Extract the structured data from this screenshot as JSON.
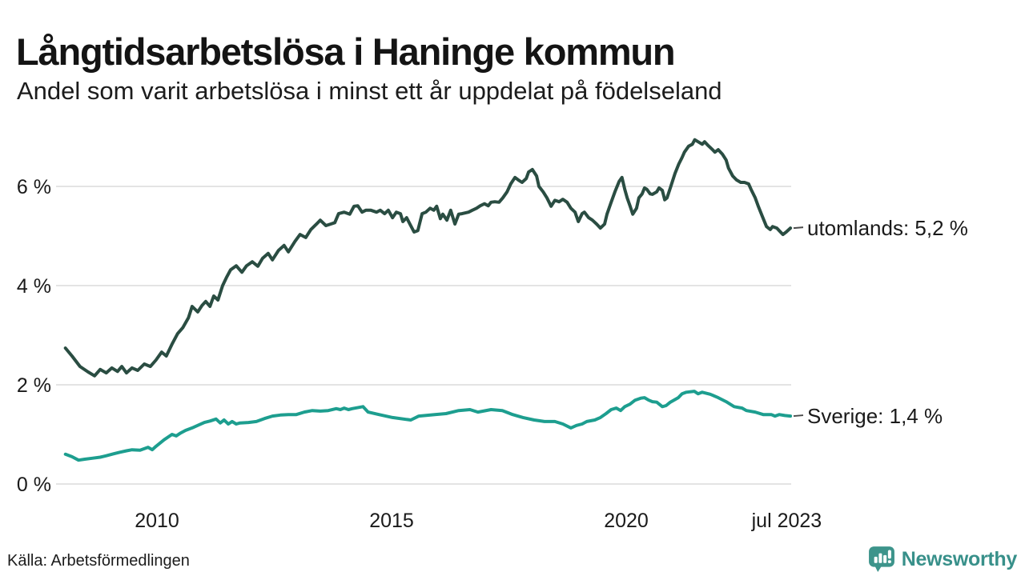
{
  "header": {
    "title": "Långtidsarbetslösa i Haninge kommun",
    "subtitle": "Andel som varit arbetslösa i minst ett år uppdelat på födelseland"
  },
  "footer": {
    "source": "Källa: Arbetsförmedlingen",
    "brand": "Newsworthy"
  },
  "colors": {
    "utomlands_line": "#2a4d42",
    "sverige_line": "#1d9e8f",
    "gridline": "#e4e4e4",
    "axis_text": "#1a1a1a",
    "label_text": "#1a1a1a",
    "leader_dash": "#4a4a4a",
    "brand_teal": "#38908a"
  },
  "chart_data": {
    "type": "line",
    "title": "Långtidsarbetslösa i Haninge kommun",
    "subtitle": "Andel som varit arbetslösa i minst ett år uppdelat på födelseland",
    "xlabel": "",
    "ylabel": "",
    "grid": true,
    "legend_position": "end-of-line-labels",
    "x_axis": {
      "range": [
        2007.9,
        2023.55
      ],
      "ticks": [
        {
          "t": 2010,
          "label": "2010"
        },
        {
          "t": 2015,
          "label": "2015"
        },
        {
          "t": 2020,
          "label": "2020"
        },
        {
          "t": 2023.42,
          "label": "jul 2023"
        }
      ]
    },
    "y_axis": {
      "range": [
        0,
        7.3
      ],
      "unit": "%",
      "ticks": [
        {
          "v": 0,
          "label": "0 %"
        },
        {
          "v": 2,
          "label": "2 %"
        },
        {
          "v": 4,
          "label": "4 %"
        },
        {
          "v": 6,
          "label": "6 %"
        }
      ]
    },
    "series": [
      {
        "name": "utomlands",
        "end_label": "utomlands: 5,2 %",
        "last_value": "5,2 %",
        "color": "#2a4d42",
        "points": [
          [
            2008.05,
            2.74
          ],
          [
            2008.19,
            2.58
          ],
          [
            2008.36,
            2.37
          ],
          [
            2008.53,
            2.26
          ],
          [
            2008.67,
            2.18
          ],
          [
            2008.79,
            2.31
          ],
          [
            2008.92,
            2.24
          ],
          [
            2009.04,
            2.34
          ],
          [
            2009.16,
            2.27
          ],
          [
            2009.25,
            2.37
          ],
          [
            2009.35,
            2.24
          ],
          [
            2009.47,
            2.34
          ],
          [
            2009.59,
            2.29
          ],
          [
            2009.73,
            2.42
          ],
          [
            2009.86,
            2.37
          ],
          [
            2009.98,
            2.5
          ],
          [
            2010.1,
            2.66
          ],
          [
            2010.2,
            2.58
          ],
          [
            2010.32,
            2.82
          ],
          [
            2010.44,
            3.03
          ],
          [
            2010.55,
            3.15
          ],
          [
            2010.67,
            3.35
          ],
          [
            2010.75,
            3.58
          ],
          [
            2010.87,
            3.47
          ],
          [
            2010.96,
            3.6
          ],
          [
            2011.04,
            3.68
          ],
          [
            2011.13,
            3.58
          ],
          [
            2011.21,
            3.79
          ],
          [
            2011.3,
            3.71
          ],
          [
            2011.4,
            4.0
          ],
          [
            2011.48,
            4.16
          ],
          [
            2011.57,
            4.32
          ],
          [
            2011.69,
            4.4
          ],
          [
            2011.81,
            4.27
          ],
          [
            2011.91,
            4.4
          ],
          [
            2012.03,
            4.48
          ],
          [
            2012.15,
            4.39
          ],
          [
            2012.25,
            4.55
          ],
          [
            2012.37,
            4.65
          ],
          [
            2012.46,
            4.52
          ],
          [
            2012.59,
            4.71
          ],
          [
            2012.71,
            4.81
          ],
          [
            2012.8,
            4.68
          ],
          [
            2012.94,
            4.89
          ],
          [
            2013.05,
            5.03
          ],
          [
            2013.17,
            4.97
          ],
          [
            2013.28,
            5.13
          ],
          [
            2013.4,
            5.24
          ],
          [
            2013.48,
            5.32
          ],
          [
            2013.6,
            5.21
          ],
          [
            2013.7,
            5.24
          ],
          [
            2013.79,
            5.27
          ],
          [
            2013.87,
            5.45
          ],
          [
            2013.99,
            5.48
          ],
          [
            2014.11,
            5.44
          ],
          [
            2014.2,
            5.6
          ],
          [
            2014.28,
            5.61
          ],
          [
            2014.37,
            5.48
          ],
          [
            2014.45,
            5.52
          ],
          [
            2014.56,
            5.52
          ],
          [
            2014.68,
            5.48
          ],
          [
            2014.76,
            5.52
          ],
          [
            2014.85,
            5.45
          ],
          [
            2014.93,
            5.52
          ],
          [
            2015.02,
            5.37
          ],
          [
            2015.1,
            5.48
          ],
          [
            2015.19,
            5.45
          ],
          [
            2015.24,
            5.29
          ],
          [
            2015.32,
            5.37
          ],
          [
            2015.39,
            5.24
          ],
          [
            2015.48,
            5.08
          ],
          [
            2015.56,
            5.11
          ],
          [
            2015.65,
            5.45
          ],
          [
            2015.73,
            5.48
          ],
          [
            2015.82,
            5.56
          ],
          [
            2015.9,
            5.52
          ],
          [
            2015.96,
            5.6
          ],
          [
            2016.04,
            5.35
          ],
          [
            2016.09,
            5.44
          ],
          [
            2016.18,
            5.32
          ],
          [
            2016.26,
            5.52
          ],
          [
            2016.35,
            5.24
          ],
          [
            2016.43,
            5.44
          ],
          [
            2016.5,
            5.45
          ],
          [
            2016.64,
            5.48
          ],
          [
            2016.72,
            5.52
          ],
          [
            2016.81,
            5.56
          ],
          [
            2016.89,
            5.61
          ],
          [
            2016.98,
            5.65
          ],
          [
            2017.06,
            5.61
          ],
          [
            2017.12,
            5.68
          ],
          [
            2017.2,
            5.69
          ],
          [
            2017.29,
            5.68
          ],
          [
            2017.37,
            5.77
          ],
          [
            2017.46,
            5.89
          ],
          [
            2017.54,
            6.05
          ],
          [
            2017.63,
            6.18
          ],
          [
            2017.7,
            6.13
          ],
          [
            2017.78,
            6.08
          ],
          [
            2017.87,
            6.16
          ],
          [
            2017.92,
            6.29
          ],
          [
            2018.0,
            6.34
          ],
          [
            2018.09,
            6.21
          ],
          [
            2018.14,
            6.0
          ],
          [
            2018.23,
            5.89
          ],
          [
            2018.31,
            5.77
          ],
          [
            2018.4,
            5.6
          ],
          [
            2018.48,
            5.72
          ],
          [
            2018.57,
            5.69
          ],
          [
            2018.65,
            5.74
          ],
          [
            2018.74,
            5.68
          ],
          [
            2018.82,
            5.56
          ],
          [
            2018.91,
            5.48
          ],
          [
            2018.98,
            5.29
          ],
          [
            2019.06,
            5.45
          ],
          [
            2019.11,
            5.48
          ],
          [
            2019.2,
            5.37
          ],
          [
            2019.28,
            5.32
          ],
          [
            2019.37,
            5.24
          ],
          [
            2019.45,
            5.16
          ],
          [
            2019.54,
            5.24
          ],
          [
            2019.59,
            5.44
          ],
          [
            2019.68,
            5.68
          ],
          [
            2019.76,
            5.89
          ],
          [
            2019.85,
            6.1
          ],
          [
            2019.91,
            6.18
          ],
          [
            2019.97,
            5.94
          ],
          [
            2020.02,
            5.77
          ],
          [
            2020.08,
            5.61
          ],
          [
            2020.14,
            5.44
          ],
          [
            2020.22,
            5.56
          ],
          [
            2020.27,
            5.77
          ],
          [
            2020.34,
            5.85
          ],
          [
            2020.39,
            5.97
          ],
          [
            2020.44,
            5.94
          ],
          [
            2020.51,
            5.85
          ],
          [
            2020.56,
            5.84
          ],
          [
            2020.65,
            5.89
          ],
          [
            2020.7,
            5.97
          ],
          [
            2020.77,
            5.92
          ],
          [
            2020.82,
            5.73
          ],
          [
            2020.87,
            5.77
          ],
          [
            2020.95,
            6.0
          ],
          [
            2021.04,
            6.26
          ],
          [
            2021.12,
            6.45
          ],
          [
            2021.19,
            6.58
          ],
          [
            2021.24,
            6.69
          ],
          [
            2021.33,
            6.81
          ],
          [
            2021.41,
            6.85
          ],
          [
            2021.46,
            6.94
          ],
          [
            2021.55,
            6.89
          ],
          [
            2021.62,
            6.85
          ],
          [
            2021.67,
            6.9
          ],
          [
            2021.75,
            6.82
          ],
          [
            2021.84,
            6.74
          ],
          [
            2021.89,
            6.69
          ],
          [
            2021.96,
            6.74
          ],
          [
            2022.05,
            6.65
          ],
          [
            2022.13,
            6.53
          ],
          [
            2022.18,
            6.37
          ],
          [
            2022.27,
            6.21
          ],
          [
            2022.35,
            6.13
          ],
          [
            2022.44,
            6.08
          ],
          [
            2022.52,
            6.08
          ],
          [
            2022.61,
            6.05
          ],
          [
            2022.66,
            5.94
          ],
          [
            2022.75,
            5.77
          ],
          [
            2022.81,
            5.61
          ],
          [
            2022.9,
            5.4
          ],
          [
            2022.99,
            5.19
          ],
          [
            2023.07,
            5.13
          ],
          [
            2023.12,
            5.19
          ],
          [
            2023.21,
            5.16
          ],
          [
            2023.26,
            5.11
          ],
          [
            2023.34,
            5.03
          ],
          [
            2023.41,
            5.08
          ],
          [
            2023.5,
            5.16
          ]
        ]
      },
      {
        "name": "Sverige",
        "end_label": "Sverige: 1,4 %",
        "last_value": "1,4 %",
        "color": "#1d9e8f",
        "points": [
          [
            2008.05,
            0.6
          ],
          [
            2008.19,
            0.55
          ],
          [
            2008.33,
            0.48
          ],
          [
            2008.46,
            0.5
          ],
          [
            2008.62,
            0.52
          ],
          [
            2008.79,
            0.54
          ],
          [
            2008.92,
            0.57
          ],
          [
            2009.08,
            0.61
          ],
          [
            2009.21,
            0.64
          ],
          [
            2009.35,
            0.67
          ],
          [
            2009.47,
            0.69
          ],
          [
            2009.64,
            0.68
          ],
          [
            2009.81,
            0.74
          ],
          [
            2009.9,
            0.69
          ],
          [
            2009.98,
            0.76
          ],
          [
            2010.15,
            0.89
          ],
          [
            2010.32,
            1.0
          ],
          [
            2010.41,
            0.97
          ],
          [
            2010.49,
            1.02
          ],
          [
            2010.61,
            1.08
          ],
          [
            2010.75,
            1.13
          ],
          [
            2010.89,
            1.19
          ],
          [
            2011.01,
            1.24
          ],
          [
            2011.13,
            1.27
          ],
          [
            2011.26,
            1.31
          ],
          [
            2011.35,
            1.23
          ],
          [
            2011.43,
            1.29
          ],
          [
            2011.52,
            1.21
          ],
          [
            2011.6,
            1.26
          ],
          [
            2011.69,
            1.21
          ],
          [
            2011.77,
            1.23
          ],
          [
            2011.95,
            1.24
          ],
          [
            2012.12,
            1.26
          ],
          [
            2012.29,
            1.32
          ],
          [
            2012.46,
            1.37
          ],
          [
            2012.63,
            1.39
          ],
          [
            2012.8,
            1.4
          ],
          [
            2012.97,
            1.4
          ],
          [
            2013.14,
            1.45
          ],
          [
            2013.31,
            1.48
          ],
          [
            2013.48,
            1.47
          ],
          [
            2013.65,
            1.48
          ],
          [
            2013.82,
            1.52
          ],
          [
            2013.91,
            1.5
          ],
          [
            2013.99,
            1.53
          ],
          [
            2014.08,
            1.5
          ],
          [
            2014.16,
            1.52
          ],
          [
            2014.39,
            1.56
          ],
          [
            2014.5,
            1.45
          ],
          [
            2014.73,
            1.4
          ],
          [
            2015.02,
            1.34
          ],
          [
            2015.41,
            1.29
          ],
          [
            2015.58,
            1.37
          ],
          [
            2015.92,
            1.4
          ],
          [
            2016.16,
            1.42
          ],
          [
            2016.43,
            1.48
          ],
          [
            2016.67,
            1.5
          ],
          [
            2016.84,
            1.45
          ],
          [
            2017.12,
            1.5
          ],
          [
            2017.36,
            1.48
          ],
          [
            2017.58,
            1.4
          ],
          [
            2017.8,
            1.34
          ],
          [
            2018.04,
            1.29
          ],
          [
            2018.26,
            1.26
          ],
          [
            2018.48,
            1.26
          ],
          [
            2018.65,
            1.21
          ],
          [
            2018.82,
            1.13
          ],
          [
            2018.94,
            1.18
          ],
          [
            2019.06,
            1.21
          ],
          [
            2019.16,
            1.26
          ],
          [
            2019.33,
            1.29
          ],
          [
            2019.45,
            1.34
          ],
          [
            2019.57,
            1.42
          ],
          [
            2019.68,
            1.5
          ],
          [
            2019.79,
            1.53
          ],
          [
            2019.88,
            1.48
          ],
          [
            2019.97,
            1.56
          ],
          [
            2020.08,
            1.61
          ],
          [
            2020.19,
            1.69
          ],
          [
            2020.31,
            1.73
          ],
          [
            2020.39,
            1.74
          ],
          [
            2020.48,
            1.69
          ],
          [
            2020.56,
            1.66
          ],
          [
            2020.65,
            1.65
          ],
          [
            2020.77,
            1.56
          ],
          [
            2020.85,
            1.58
          ],
          [
            2020.94,
            1.65
          ],
          [
            2021.11,
            1.74
          ],
          [
            2021.19,
            1.82
          ],
          [
            2021.28,
            1.85
          ],
          [
            2021.45,
            1.87
          ],
          [
            2021.53,
            1.82
          ],
          [
            2021.62,
            1.85
          ],
          [
            2021.79,
            1.81
          ],
          [
            2021.96,
            1.74
          ],
          [
            2022.13,
            1.66
          ],
          [
            2022.3,
            1.56
          ],
          [
            2022.47,
            1.53
          ],
          [
            2022.56,
            1.48
          ],
          [
            2022.75,
            1.45
          ],
          [
            2022.92,
            1.4
          ],
          [
            2023.09,
            1.4
          ],
          [
            2023.17,
            1.37
          ],
          [
            2023.26,
            1.4
          ],
          [
            2023.38,
            1.38
          ],
          [
            2023.5,
            1.37
          ]
        ]
      }
    ]
  }
}
